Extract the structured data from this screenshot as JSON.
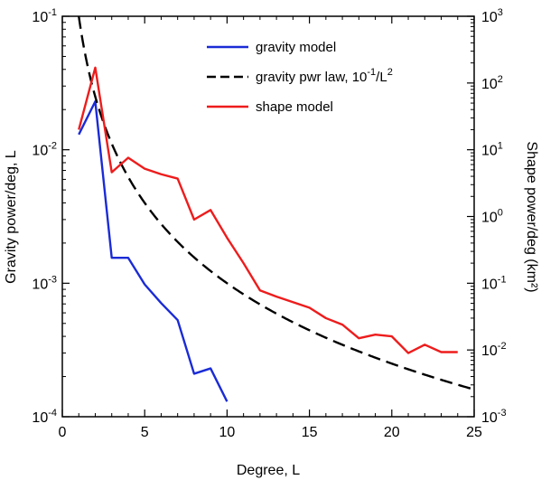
{
  "chart_data": {
    "type": "line",
    "xlabel": "Degree, L",
    "ylabel_left": "Gravity power/deg, L",
    "ylabel_right": "Shape power/deg (km²)",
    "xlim": [
      0,
      25
    ],
    "ylim_left": [
      0.0001,
      0.1
    ],
    "ylim_right": [
      0.001,
      1000
    ],
    "yscale": "log",
    "grid": false,
    "legend_position": "top-center",
    "x_ticks": [
      "0",
      "5",
      "10",
      "15",
      "20",
      "25"
    ],
    "y_ticks_left": [
      {
        "value": 0.1,
        "base": "10",
        "exp": "-1"
      },
      {
        "value": 0.01,
        "base": "10",
        "exp": "-2"
      },
      {
        "value": 0.001,
        "base": "10",
        "exp": "-3"
      },
      {
        "value": 0.0001,
        "base": "10",
        "exp": "-4"
      }
    ],
    "y_ticks_right": [
      {
        "value": 1000,
        "base": "10",
        "exp": "3"
      },
      {
        "value": 100,
        "base": "10",
        "exp": "2"
      },
      {
        "value": 10,
        "base": "10",
        "exp": "1"
      },
      {
        "value": 1,
        "base": "10",
        "exp": "0"
      },
      {
        "value": 0.1,
        "base": "10",
        "exp": "-1"
      },
      {
        "value": 0.01,
        "base": "10",
        "exp": "-2"
      },
      {
        "value": 0.001,
        "base": "10",
        "exp": "-3"
      }
    ],
    "series": [
      {
        "name": "gravity model",
        "axis": "left",
        "color": "#1a2bd6",
        "dash": "solid",
        "x": [
          1,
          2,
          3,
          4,
          5,
          6,
          7,
          8,
          9,
          10
        ],
        "y": [
          0.013,
          0.023,
          0.00155,
          0.00155,
          0.00098,
          0.00071,
          0.00053,
          0.00021,
          0.00023,
          0.00013
        ]
      },
      {
        "name": "gravity pwr law, 10⁻¹/L²",
        "axis": "left",
        "color": "#000000",
        "dash": "dashed",
        "function": "0.1/L^2",
        "x_range": [
          1,
          25
        ]
      },
      {
        "name": "shape model",
        "axis": "right",
        "color": "#ee1c1c",
        "dash": "solid",
        "x": [
          1,
          2,
          3,
          4,
          5,
          6,
          7,
          8,
          9,
          10,
          11,
          12,
          13,
          14,
          15,
          16,
          17,
          18,
          19,
          20,
          21,
          22,
          23,
          24
        ],
        "y": [
          20,
          170,
          4.6,
          7.6,
          5.2,
          4.3,
          3.7,
          0.9,
          1.25,
          0.48,
          0.2,
          0.078,
          0.063,
          0.052,
          0.043,
          0.03,
          0.024,
          0.015,
          0.017,
          0.016,
          0.009,
          0.012,
          0.0093,
          0.0093
        ]
      }
    ],
    "legend": [
      {
        "label": "gravity model",
        "color": "#1a2bd6",
        "dash": "solid"
      },
      {
        "label": "gravity pwr law, 10",
        "sup": "-1",
        "label_tail": "/L",
        "sup2": "2",
        "color": "#000000",
        "dash": "dashed"
      },
      {
        "label": "shape model",
        "color": "#ee1c1c",
        "dash": "solid"
      }
    ]
  }
}
